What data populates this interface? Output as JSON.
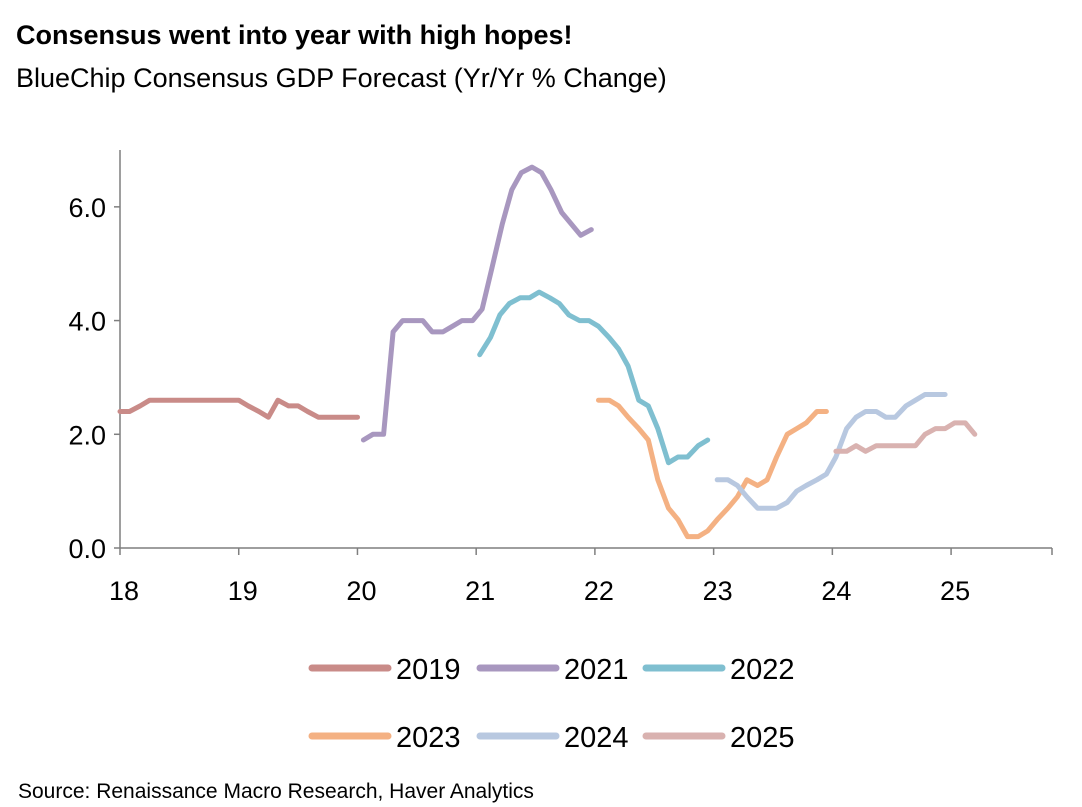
{
  "title": "Consensus went into year with high hopes!",
  "subtitle": "BlueChip Consensus GDP Forecast (Yr/Yr % Change)",
  "source": "Source: Renaissance Macro Research, Haver Analytics",
  "chart_data": {
    "type": "line",
    "xlim": [
      18,
      25.85
    ],
    "ylim": [
      0,
      7
    ],
    "x_ticks": [
      18,
      19,
      20,
      21,
      22,
      23,
      24,
      25
    ],
    "x_tick_labels": [
      "18",
      "19",
      "20",
      "21",
      "22",
      "23",
      "24",
      "25"
    ],
    "y_ticks": [
      0,
      2,
      4,
      6
    ],
    "y_tick_labels": [
      "0.0",
      "2.0",
      "4.0",
      "6.0"
    ],
    "grid": false,
    "legend_position": "bottom",
    "series": [
      {
        "name": "2019",
        "color": "#c98b88",
        "x": [
          18.0,
          18.08,
          18.17,
          18.25,
          18.33,
          18.42,
          18.5,
          18.58,
          18.67,
          18.75,
          18.83,
          18.92,
          19.0,
          19.08,
          19.17,
          19.25,
          19.33,
          19.42,
          19.5,
          19.58,
          19.67,
          19.75,
          19.83,
          19.92,
          20.0
        ],
        "y": [
          2.4,
          2.4,
          2.5,
          2.6,
          2.6,
          2.6,
          2.6,
          2.6,
          2.6,
          2.6,
          2.6,
          2.6,
          2.6,
          2.5,
          2.4,
          2.3,
          2.6,
          2.5,
          2.5,
          2.4,
          2.3,
          2.3,
          2.3,
          2.3,
          2.3
        ]
      },
      {
        "name": "2021",
        "color": "#a897bf",
        "x": [
          20.05,
          20.13,
          20.22,
          20.3,
          20.38,
          20.47,
          20.55,
          20.63,
          20.72,
          20.8,
          20.88,
          20.97,
          21.05,
          21.13,
          21.22,
          21.3,
          21.38,
          21.47,
          21.55,
          21.63,
          21.72,
          21.8,
          21.88,
          21.97
        ],
        "y": [
          1.9,
          2.0,
          2.0,
          3.8,
          4.0,
          4.0,
          4.0,
          3.8,
          3.8,
          3.9,
          4.0,
          4.0,
          4.2,
          4.9,
          5.7,
          6.3,
          6.6,
          6.7,
          6.6,
          6.3,
          5.9,
          5.7,
          5.5,
          5.6
        ]
      },
      {
        "name": "2022",
        "color": "#7fbfd0",
        "x": [
          21.03,
          21.12,
          21.2,
          21.28,
          21.37,
          21.45,
          21.53,
          21.62,
          21.7,
          21.78,
          21.87,
          21.95,
          22.03,
          22.12,
          22.2,
          22.28,
          22.37,
          22.45,
          22.53,
          22.62,
          22.7,
          22.78,
          22.87,
          22.95
        ],
        "y": [
          3.4,
          3.7,
          4.1,
          4.3,
          4.4,
          4.4,
          4.5,
          4.4,
          4.3,
          4.1,
          4.0,
          4.0,
          3.9,
          3.7,
          3.5,
          3.2,
          2.6,
          2.5,
          2.1,
          1.5,
          1.6,
          1.6,
          1.8,
          1.9
        ]
      },
      {
        "name": "2023",
        "color": "#f4b183",
        "x": [
          22.03,
          22.12,
          22.2,
          22.28,
          22.37,
          22.45,
          22.53,
          22.62,
          22.7,
          22.78,
          22.87,
          22.95,
          23.03,
          23.12,
          23.2,
          23.28,
          23.37,
          23.45,
          23.53,
          23.62,
          23.7,
          23.78,
          23.87,
          23.95
        ],
        "y": [
          2.6,
          2.6,
          2.5,
          2.3,
          2.1,
          1.9,
          1.2,
          0.7,
          0.5,
          0.2,
          0.2,
          0.3,
          0.5,
          0.7,
          0.9,
          1.2,
          1.1,
          1.2,
          1.6,
          2.0,
          2.1,
          2.2,
          2.4,
          2.4
        ]
      },
      {
        "name": "2024",
        "color": "#b8c8e0",
        "x": [
          23.03,
          23.12,
          23.2,
          23.28,
          23.37,
          23.45,
          23.53,
          23.62,
          23.7,
          23.78,
          23.87,
          23.95,
          24.03,
          24.12,
          24.2,
          24.28,
          24.37,
          24.45,
          24.53,
          24.62,
          24.7,
          24.78,
          24.87,
          24.95
        ],
        "y": [
          1.2,
          1.2,
          1.1,
          0.9,
          0.7,
          0.7,
          0.7,
          0.8,
          1.0,
          1.1,
          1.2,
          1.3,
          1.6,
          2.1,
          2.3,
          2.4,
          2.4,
          2.3,
          2.3,
          2.5,
          2.6,
          2.7,
          2.7,
          2.7
        ]
      },
      {
        "name": "2025",
        "color": "#d9b2b0",
        "x": [
          24.03,
          24.12,
          24.2,
          24.28,
          24.37,
          24.45,
          24.53,
          24.62,
          24.7,
          24.78,
          24.87,
          24.95,
          25.03,
          25.12,
          25.2
        ],
        "y": [
          1.7,
          1.7,
          1.8,
          1.7,
          1.8,
          1.8,
          1.8,
          1.8,
          1.8,
          2.0,
          2.1,
          2.1,
          2.2,
          2.2,
          2.0
        ]
      }
    ]
  }
}
